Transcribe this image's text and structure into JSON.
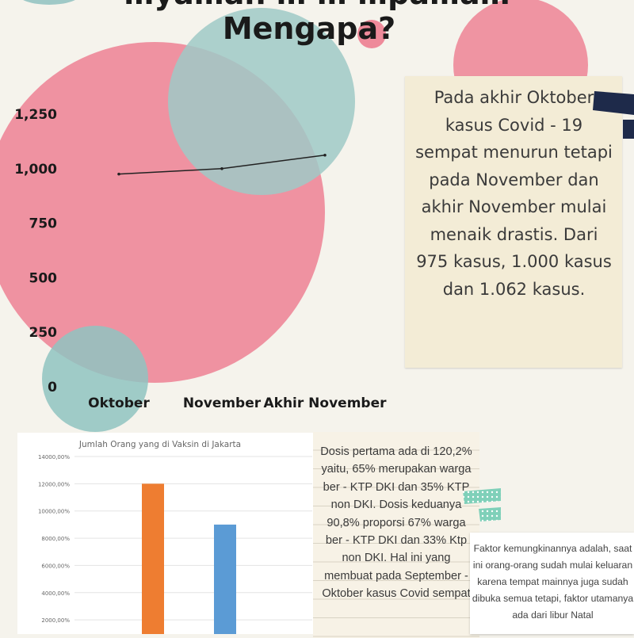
{
  "page": {
    "title": "Mengapa?",
    "title_partial": "…ya…ah … … …pa…a…"
  },
  "colors": {
    "pink": "#ee8a9a",
    "teal": "#a7cfcd",
    "navy": "#1e2a4a",
    "orange": "#ee7d31",
    "blue": "#5b9bd5",
    "mint": "#7fd0b9"
  },
  "note_main": {
    "text": "Pada akhir Oktober kasus Covid - 19 sempat menurun tetapi pada November dan akhir November mulai menaik drastis. Dari 975 kasus, 1.000 kasus dan 1.062 kasus."
  },
  "note_dosis": {
    "text": "Dosis pertama ada di 120,2% yaitu, 65% merupakan warga ber - KTP DKI dan 35% KTP non DKI. Dosis keduanya 90,8% proporsi 67% warga ber - KTP DKI dan 33% Ktp non DKI. Hal ini yang membuat pada September - Oktober kasus Covid sempat"
  },
  "note_faktor": {
    "text": "Faktor kemungkinannya adalah, saat ini orang-orang sudah mulai keluaran karena tempat mainnya juga sudah dibuka semua tetapi, faktor utamanya ada dari libur Natal"
  },
  "chart_data": [
    {
      "type": "line",
      "categories": [
        "Oktober",
        "November",
        "Akhir November"
      ],
      "values": [
        975,
        1000,
        1062
      ],
      "yticks": [
        "0",
        "250",
        "500",
        "750",
        "1,000",
        "1,250"
      ],
      "ylim": [
        0,
        1250
      ],
      "grid": false
    },
    {
      "type": "bar",
      "title": "Jumlah Orang yang di Vaksin di Jakarta",
      "values": [
        12000,
        9000
      ],
      "colors": [
        "#ee7d31",
        "#5b9bd5"
      ],
      "yticks": [
        "14000,00%",
        "12000,00%",
        "10000,00%",
        "8000,00%",
        "6000,00%",
        "4000,00%",
        "2000,00%"
      ],
      "ylim": [
        0,
        14000
      ],
      "grid": true
    }
  ]
}
